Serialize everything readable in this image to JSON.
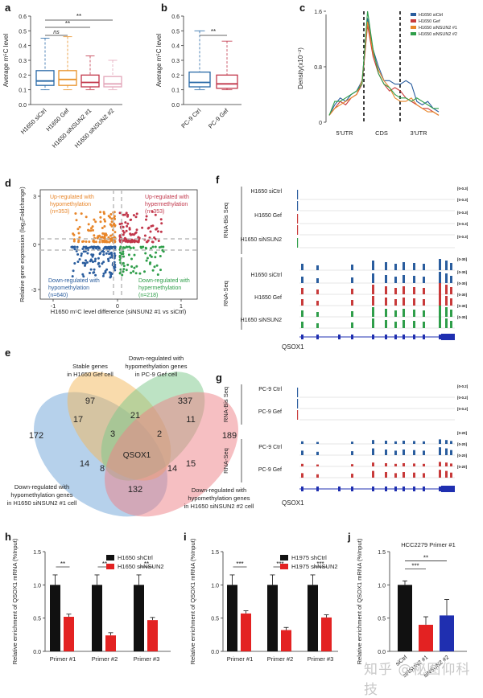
{
  "figure": {
    "panels": {
      "a": {
        "letter": "a",
        "ylabel": "Average m⁵C level",
        "yticks": [
          "0.0",
          "0.1",
          "0.2",
          "0.3",
          "0.4",
          "0.5",
          "0.6"
        ],
        "groups": [
          "H1650 siCtrl",
          "H1650 Gef",
          "H1650 siNSUN2 #1",
          "H1650 siNSUN2 #2"
        ],
        "colors": [
          "#2a6aa8",
          "#e8922a",
          "#c1364a",
          "#e3a6ba"
        ],
        "sig": [
          "ns",
          "**",
          "**"
        ]
      },
      "b": {
        "letter": "b",
        "ylabel": "Average m⁵C level",
        "yticks": [
          "0.0",
          "0.1",
          "0.2",
          "0.3",
          "0.4",
          "0.5",
          "0.6"
        ],
        "groups": [
          "PC-9 Ctrl",
          "PC-9 Gef"
        ],
        "colors": [
          "#2a6aa8",
          "#c1364a"
        ],
        "sig": [
          "**"
        ]
      },
      "c": {
        "letter": "c",
        "ylabel": "Density(x10⁻²)",
        "yticks": [
          "0",
          "0.8",
          "1.6"
        ],
        "regions": [
          "5'UTR",
          "CDS",
          "3'UTR"
        ],
        "legend": [
          "H1650 siCtrl",
          "H1650 Gef",
          "H1650 siNSUN2 #1",
          "H1650 siNSUN2 #2"
        ],
        "colors": [
          "#2a5d9e",
          "#c83a3a",
          "#e8862a",
          "#2f9e4a"
        ]
      },
      "d": {
        "letter": "d",
        "ylabel": "Relative gene expression (log₂Foldchange)",
        "xlabel": "H1650 m⁵C level difference (siNSUN2 #1  vs  siCtrl)",
        "xticks": [
          "-1",
          "0",
          "1"
        ],
        "yticks": [
          "-3",
          "0",
          "3"
        ],
        "q_ul": [
          "Up-regulated with",
          "hypomethylation",
          "(n=353)"
        ],
        "q_ur": [
          "Up-regulated with",
          "hypermethylation",
          "(n=353)"
        ],
        "q_ll": [
          "Down-regulated with",
          "hypomethylation",
          "(n=640)"
        ],
        "q_lr": [
          "Down-regulated with",
          "hypermethylation",
          "(n=218)"
        ]
      },
      "e": {
        "letter": "e",
        "sets": {
          "stable": [
            "Stable genes",
            "in H1650 Gef cell"
          ],
          "pc9": [
            "Down-regulated with",
            "hypomethylation genes",
            "in PC-9 Gef cell"
          ],
          "si1": [
            "Down-regulated with",
            "hypomethylation genes",
            "in H1650 siNSUN2 #1 cell"
          ],
          "si2": [
            "Down-regulated with",
            "hypomethylation genes",
            "in H1650 siNSUN2 #2 cell"
          ]
        },
        "counts": {
          "a": "172",
          "b": "97",
          "c": "337",
          "d": "189",
          "ab": "17",
          "bc": "21",
          "cd": "11",
          "bcx": "3",
          "bcy": "2",
          "ax": "14",
          "dx": "15",
          "center": "QSOX1",
          "l8": "8",
          "r14": "14",
          "bottom": "132"
        }
      },
      "f": {
        "letter": "f",
        "gene": "QSOX1",
        "section1": "RNA-Bis Seq",
        "section2": "RNA-Seq",
        "tracks": [
          "H1650 siCtrl",
          "H1650 Gef",
          "H1650 siNSUN2"
        ],
        "scale_bis": "[0-0.3]",
        "scale_seq": "[0-30]"
      },
      "g": {
        "letter": "g",
        "gene": "QSOX1",
        "section1": "RNA-Bis Seq",
        "section2": "RNA-Seq",
        "tracks": [
          "PC-9 Ctrl",
          "PC-9 Gef"
        ],
        "scale_bis": "[0-0.2]",
        "scale_seq": "[0-20]"
      },
      "h": {
        "letter": "h",
        "ylabel": "Relative enrichment of QSOX1 mRNA (%Input)",
        "yticks": [
          "0.0",
          "0.5",
          "1.0",
          "1.5"
        ],
        "categories": [
          "Primer #1",
          "Primer #2",
          "Primer #3"
        ],
        "series": [
          {
            "name": "H1650 shCtrl",
            "values": [
              1.0,
              1.0,
              1.0
            ]
          },
          {
            "name": "H1650 shNSUN2",
            "values": [
              0.52,
              0.24,
              0.47
            ]
          }
        ],
        "sig": [
          "**",
          "**",
          "**"
        ],
        "colors": [
          "#111111",
          "#e32222"
        ]
      },
      "i": {
        "letter": "i",
        "ylabel": "Relative enrichment of QSOX1 mRNA (%Input)",
        "yticks": [
          "0.0",
          "0.5",
          "1.0",
          "1.5"
        ],
        "categories": [
          "Primer #1",
          "Primer #2",
          "Primer #3"
        ],
        "series": [
          {
            "name": "H1975 shCtrl",
            "values": [
              1.0,
              1.0,
              1.0
            ]
          },
          {
            "name": "H1975 shNSUN2",
            "values": [
              0.57,
              0.32,
              0.51
            ]
          }
        ],
        "sig": [
          "***",
          "***",
          "***"
        ],
        "colors": [
          "#111111",
          "#e32222"
        ]
      },
      "j": {
        "letter": "j",
        "title": "HCC2279 Primer #1",
        "ylabel": "Relative enrichment of QSOX1 mRNA (%Input)",
        "yticks": [
          "0.0",
          "0.5",
          "1.0",
          "1.5"
        ],
        "categories": [
          "siCtrl",
          "siNSUN2 #1",
          "siNSUN2 #2"
        ],
        "values": [
          1.0,
          0.4,
          0.54
        ],
        "sig": [
          "***",
          "**"
        ],
        "colors": [
          "#111111",
          "#e32222",
          "#1f2fb0"
        ]
      }
    }
  },
  "chart_data": [
    {
      "type": "bar",
      "title": "",
      "ylabel": "Relative enrichment of QSOX1 mRNA (%Input)",
      "categories": [
        "Primer #1",
        "Primer #2",
        "Primer #3"
      ],
      "series": [
        {
          "name": "H1650 shCtrl",
          "values": [
            1.0,
            1.0,
            1.0
          ]
        },
        {
          "name": "H1650 shNSUN2",
          "values": [
            0.52,
            0.24,
            0.47
          ]
        }
      ],
      "ylim": [
        0,
        1.5
      ]
    },
    {
      "type": "bar",
      "title": "",
      "ylabel": "Relative enrichment of QSOX1 mRNA (%Input)",
      "categories": [
        "Primer #1",
        "Primer #2",
        "Primer #3"
      ],
      "series": [
        {
          "name": "H1975 shCtrl",
          "values": [
            1.0,
            1.0,
            1.0
          ]
        },
        {
          "name": "H1975 shNSUN2",
          "values": [
            0.57,
            0.32,
            0.51
          ]
        }
      ],
      "ylim": [
        0,
        1.5
      ]
    },
    {
      "type": "bar",
      "title": "HCC2279 Primer #1",
      "ylabel": "Relative enrichment of QSOX1 mRNA (%Input)",
      "categories": [
        "siCtrl",
        "siNSUN2 #1",
        "siNSUN2 #2"
      ],
      "values": [
        1.0,
        0.4,
        0.54
      ],
      "ylim": [
        0,
        1.5
      ]
    }
  ],
  "watermark": "知乎 @秘图仰科技"
}
